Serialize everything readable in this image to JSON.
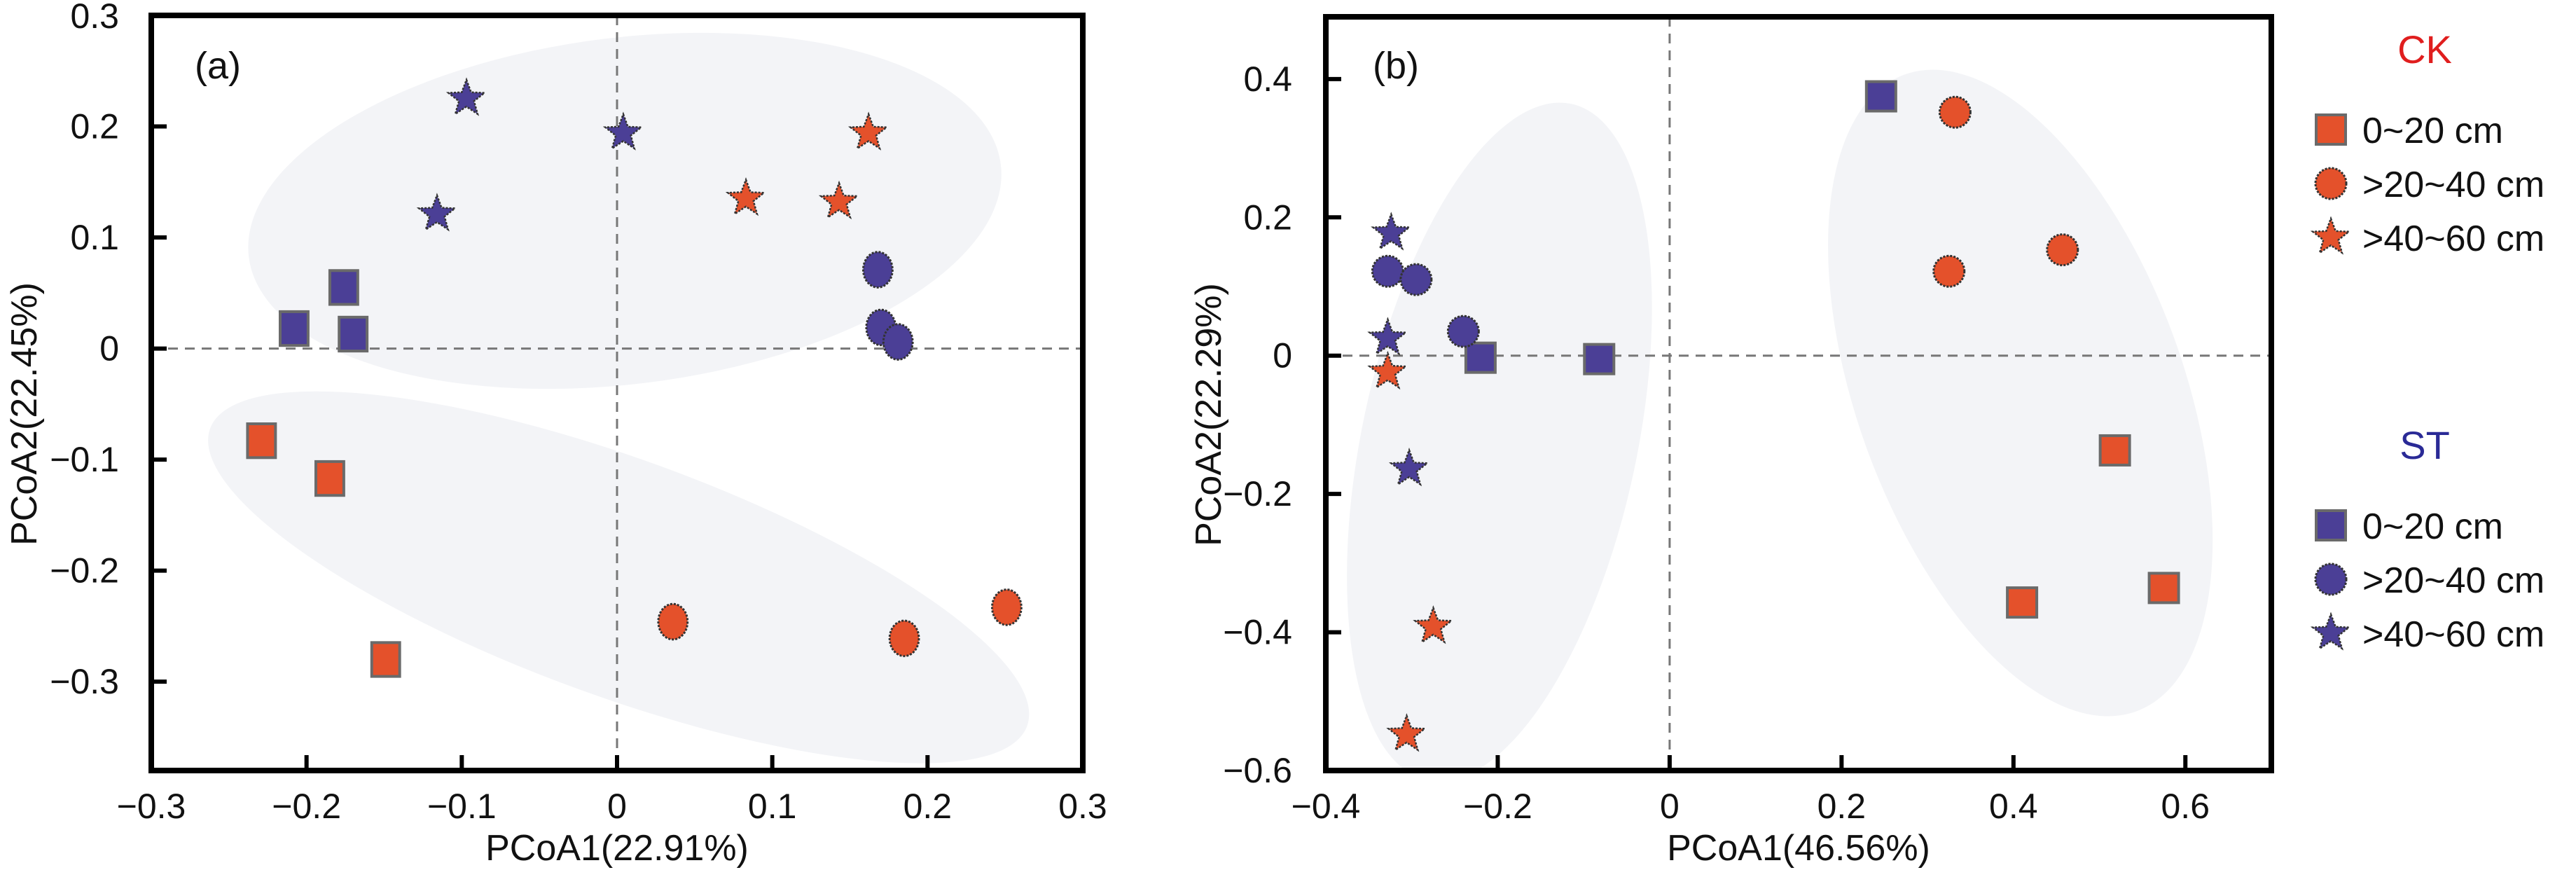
{
  "figure": {
    "colors": {
      "CK": "#E4512B",
      "ST": "#4B3F96",
      "ellipse_fill": "#F3F4F7",
      "CK_legend_title": "#E01E1E",
      "ST_legend_title": "#2A2A96",
      "reference_line": "#777777"
    }
  },
  "chart_data": [
    {
      "type": "scatter",
      "panel_label": "(a)",
      "xlabel": "PCoA1(22.91%)",
      "ylabel": "PCoA2(22.45%)",
      "xlim": [
        -0.3,
        0.3
      ],
      "ylim": [
        -0.38,
        0.3
      ],
      "xticks": [
        -0.3,
        -0.2,
        -0.1,
        0,
        0.1,
        0.2,
        0.3
      ],
      "xtick_labels": [
        "−0.3",
        "−0.2",
        "−0.1",
        "0",
        "0.1",
        "0.2",
        "0.3"
      ],
      "yticks": [
        0.3,
        0.2,
        0.1,
        0,
        -0.1,
        -0.2,
        -0.3
      ],
      "ytick_labels": [
        "0.3",
        "0.2",
        "0.1",
        "0",
        "−0.1",
        "−0.2",
        "−0.3"
      ],
      "reference_lines": {
        "x": 0,
        "y": 0
      },
      "grid": false,
      "confidence_ellipses": [
        {
          "group": "upper",
          "cx": 0.005,
          "cy": 0.124,
          "rx": 0.244,
          "ry": 0.156,
          "angle_deg": -7
        },
        {
          "group": "lower",
          "cx": 0.001,
          "cy": -0.206,
          "rx": 0.28,
          "ry": 0.107,
          "angle_deg": 20
        }
      ],
      "series": [
        {
          "name": "CK 0~20 cm",
          "treatment": "CK",
          "depth": "0~20 cm",
          "marker": "square",
          "points": [
            [
              -0.229,
              -0.083
            ],
            [
              -0.185,
              -0.117
            ],
            [
              -0.149,
              -0.28
            ]
          ]
        },
        {
          "name": "CK >20~40 cm",
          "treatment": "CK",
          "depth": ">20~40 cm",
          "marker": "circle",
          "points": [
            [
              0.036,
              -0.246
            ],
            [
              0.185,
              -0.261
            ],
            [
              0.251,
              -0.233
            ]
          ]
        },
        {
          "name": "CK >40~60 cm",
          "treatment": "CK",
          "depth": ">40~60 cm",
          "marker": "star",
          "points": [
            [
              0.162,
              0.194
            ],
            [
              0.083,
              0.135
            ],
            [
              0.143,
              0.132
            ]
          ]
        },
        {
          "name": "ST 0~20 cm",
          "treatment": "ST",
          "depth": "0~20 cm",
          "marker": "square",
          "points": [
            [
              -0.208,
              0.018
            ],
            [
              -0.176,
              0.055
            ],
            [
              -0.17,
              0.013
            ]
          ]
        },
        {
          "name": "ST >20~40 cm",
          "treatment": "ST",
          "depth": ">20~40 cm",
          "marker": "circle",
          "points": [
            [
              0.168,
              0.071
            ],
            [
              0.17,
              0.019
            ],
            [
              0.181,
              0.006
            ]
          ]
        },
        {
          "name": "ST >40~60 cm",
          "treatment": "ST",
          "depth": ">40~60 cm",
          "marker": "star",
          "points": [
            [
              -0.097,
              0.225
            ],
            [
              0.004,
              0.194
            ],
            [
              -0.116,
              0.121
            ]
          ]
        }
      ]
    },
    {
      "type": "scatter",
      "panel_label": "(b)",
      "xlabel": "PCoA1(46.56%)",
      "ylabel": "PCoA2(22.29%)",
      "xlim": [
        -0.4,
        0.7
      ],
      "ylim": [
        -0.6,
        0.49
      ],
      "xticks": [
        -0.4,
        -0.2,
        0,
        0.2,
        0.4,
        0.6
      ],
      "xtick_labels": [
        "−0.4",
        "−0.2",
        "0",
        "0.2",
        "0.4",
        "0.6"
      ],
      "yticks": [
        0.4,
        0.2,
        0,
        -0.2,
        -0.4,
        -0.6
      ],
      "ytick_labels": [
        "0.4",
        "0.2",
        "0",
        "−0.2",
        "−0.4",
        "−0.6"
      ],
      "reference_lines": {
        "x": 0,
        "y": 0
      },
      "grid": false,
      "confidence_ellipses": [
        {
          "group": "left",
          "cx": -0.198,
          "cy": -0.125,
          "rx": 0.16,
          "ry": 0.5,
          "angle_deg": 12
        },
        {
          "group": "right",
          "cx": 0.408,
          "cy": -0.054,
          "rx": 0.19,
          "ry": 0.49,
          "angle_deg": -20
        }
      ],
      "series": [
        {
          "name": "CK 0~20 cm",
          "treatment": "CK",
          "depth": "0~20 cm",
          "marker": "square",
          "points": [
            [
              0.518,
              -0.137
            ],
            [
              0.41,
              -0.357
            ],
            [
              0.575,
              -0.336
            ]
          ]
        },
        {
          "name": "CK >20~40 cm",
          "treatment": "CK",
          "depth": ">20~40 cm",
          "marker": "circle",
          "points": [
            [
              0.332,
              0.352
            ],
            [
              0.325,
              0.122
            ],
            [
              0.457,
              0.153
            ]
          ]
        },
        {
          "name": "CK >40~60 cm",
          "treatment": "CK",
          "depth": ">40~60 cm",
          "marker": "star",
          "points": [
            [
              -0.328,
              -0.024
            ],
            [
              -0.275,
              -0.392
            ],
            [
              -0.306,
              -0.548
            ]
          ]
        },
        {
          "name": "ST 0~20 cm",
          "treatment": "ST",
          "depth": "0~20 cm",
          "marker": "square",
          "points": [
            [
              0.246,
              0.375
            ],
            [
              -0.22,
              -0.003
            ],
            [
              -0.082,
              -0.005
            ]
          ]
        },
        {
          "name": "ST >20~40 cm",
          "treatment": "ST",
          "depth": ">20~40 cm",
          "marker": "circle",
          "points": [
            [
              -0.328,
              0.122
            ],
            [
              -0.295,
              0.11
            ],
            [
              -0.24,
              0.035
            ]
          ]
        },
        {
          "name": "ST >40~60 cm",
          "treatment": "ST",
          "depth": ">40~60 cm",
          "marker": "star",
          "points": [
            [
              -0.324,
              0.177
            ],
            [
              -0.328,
              0.025
            ],
            [
              -0.303,
              -0.164
            ]
          ]
        }
      ]
    }
  ],
  "legend": {
    "placement": "right",
    "groups": [
      {
        "title": "CK",
        "treatment": "CK",
        "items": [
          {
            "marker": "square",
            "label": "0~20 cm"
          },
          {
            "marker": "circle",
            "label": ">20~40 cm"
          },
          {
            "marker": "star",
            "label": ">40~60 cm"
          }
        ]
      },
      {
        "title": "ST",
        "treatment": "ST",
        "items": [
          {
            "marker": "square",
            "label": "0~20 cm"
          },
          {
            "marker": "circle",
            "label": ">20~40 cm"
          },
          {
            "marker": "star",
            "label": ">40~60 cm"
          }
        ]
      }
    ]
  }
}
